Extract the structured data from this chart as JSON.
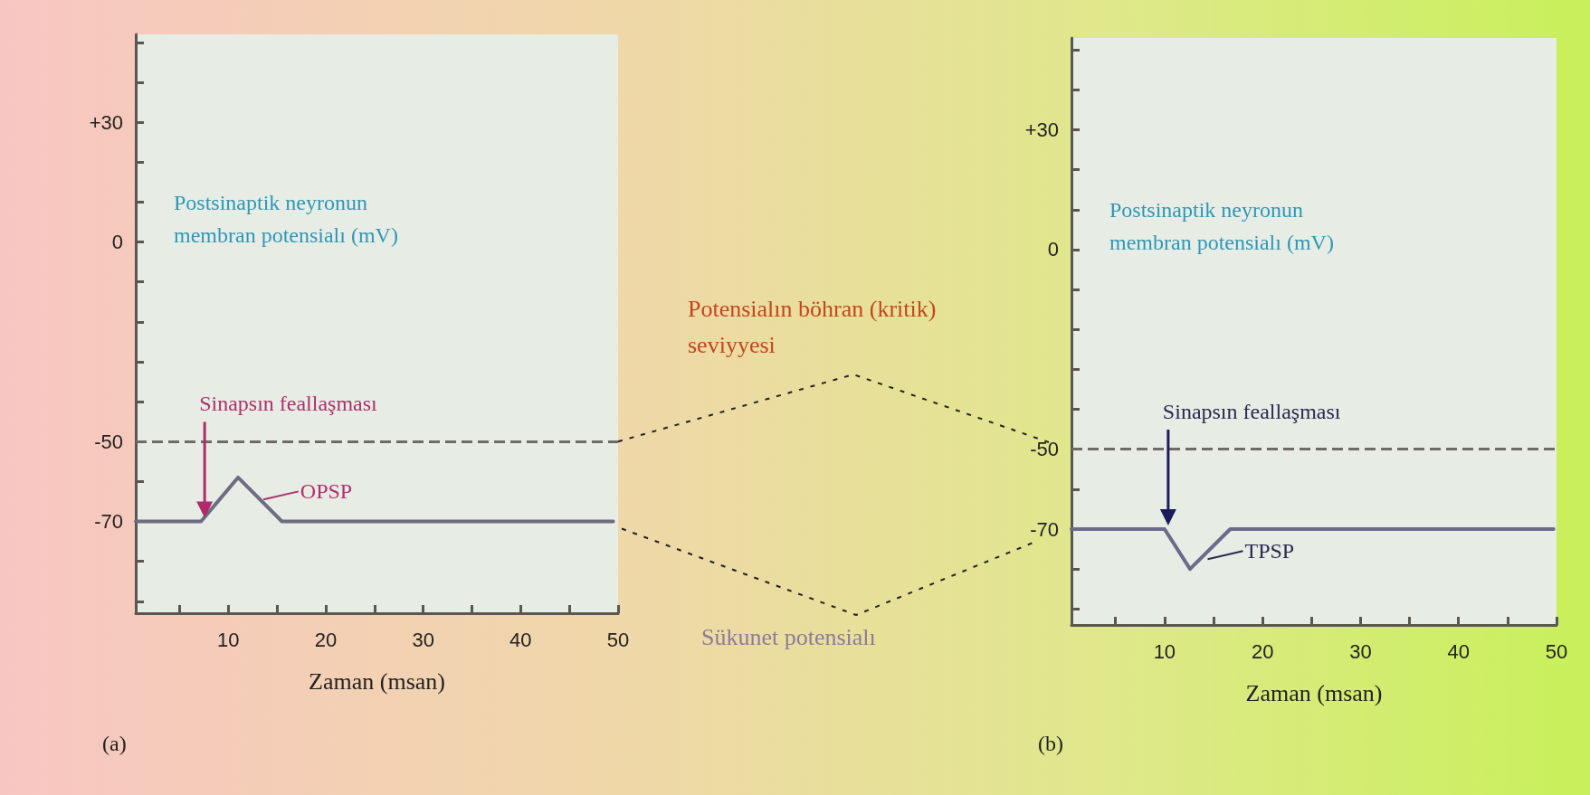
{
  "chart_data": [
    {
      "type": "line",
      "title": "(a)",
      "xlabel": "Zaman (msan)",
      "ylabel": "Postsinaptik neyronun membran potensialı (mV)",
      "x": [
        0.5,
        7.2,
        11,
        15.5,
        49.5
      ],
      "series": [
        {
          "color": "#6e6c80",
          "values": [
            -70,
            -70,
            -59,
            -70,
            -70
          ]
        }
      ],
      "xlim": [
        0.5,
        50
      ],
      "xticks": [
        {
          "value": 5,
          "label": null
        },
        10,
        {
          "value": 15,
          "label": null
        },
        20,
        {
          "value": 25,
          "label": null
        },
        30,
        {
          "value": 35,
          "label": null
        },
        40,
        {
          "value": 45,
          "label": null
        },
        50
      ],
      "ylim": [
        -93,
        52
      ],
      "yticks": [
        {
          "value": -90,
          "label": null
        },
        {
          "value": -80,
          "label": null
        },
        -70,
        {
          "value": -60,
          "label": null
        },
        -50,
        {
          "value": -40,
          "label": null
        },
        {
          "value": -30,
          "label": null
        },
        {
          "value": -20,
          "label": null
        },
        {
          "value": -10,
          "label": null
        },
        0,
        {
          "value": 10,
          "label": null
        },
        {
          "value": 20,
          "label": null
        },
        {
          "value": 30,
          "label": "+30"
        },
        {
          "value": 40,
          "label": null
        },
        {
          "value": 50,
          "label": null
        }
      ],
      "ref_lines": [
        {
          "axis": "y",
          "value": -50,
          "color": "#6e6a66",
          "line_style": "dashed"
        }
      ],
      "annotations": [
        "Sinapsın feallaşması",
        {
          "text": "OPSP",
          "x": 13.2,
          "y": -64.5
        },
        "Potensialın böhran (kritik) seviyyesi",
        "Sükunet potensialı"
      ],
      "line_style": "solid",
      "grid": false
    },
    {
      "type": "line",
      "title": "(b)",
      "xlabel": "Zaman (msan)",
      "ylabel": "Postsinaptik neyronun membran potensialı (mV)",
      "x": [
        0.5,
        10,
        12.6,
        16.7,
        49.7
      ],
      "series": [
        {
          "color": "#6a6a8c",
          "values": [
            -70,
            -70,
            -80,
            -70,
            -70
          ]
        }
      ],
      "xlim": [
        0.5,
        50
      ],
      "xticks": [
        {
          "value": 5,
          "label": null
        },
        10,
        {
          "value": 15,
          "label": null
        },
        20,
        {
          "value": 25,
          "label": null
        },
        30,
        {
          "value": 35,
          "label": null
        },
        40,
        {
          "value": 45,
          "label": null
        },
        50
      ],
      "ylim": [
        -94,
        53
      ],
      "yticks": [
        {
          "value": -90,
          "label": null
        },
        {
          "value": -80,
          "label": null
        },
        -70,
        {
          "value": -60,
          "label": null
        },
        -50,
        {
          "value": -40,
          "label": null
        },
        {
          "value": -30,
          "label": null
        },
        {
          "value": -20,
          "label": null
        },
        {
          "value": -10,
          "label": null
        },
        0,
        {
          "value": 10,
          "label": null
        },
        {
          "value": 20,
          "label": null
        },
        {
          "value": 30,
          "label": "+30"
        },
        {
          "value": 40,
          "label": null
        },
        {
          "value": 50,
          "label": null
        }
      ],
      "ref_lines": [
        {
          "axis": "y",
          "value": -50,
          "color": "#6e6a66",
          "line_style": "dashed"
        }
      ],
      "annotations": [
        "Sinapsın feallaşması",
        {
          "text": "TPSP",
          "x": 14,
          "y": -77.5
        }
      ],
      "line_style": "solid",
      "grid": false
    }
  ]
}
